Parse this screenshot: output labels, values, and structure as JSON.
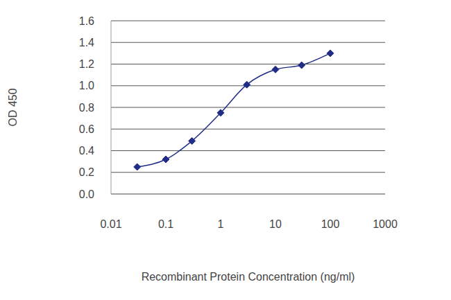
{
  "chart_data": {
    "type": "line",
    "x_label": "Recombinant Protein Concentration (ng/ml)",
    "y_label": "OD 450",
    "x": [
      0.03,
      0.1,
      0.3,
      1,
      3,
      10,
      30,
      100
    ],
    "values": [
      0.25,
      0.32,
      0.49,
      0.75,
      1.01,
      1.15,
      1.19,
      1.3
    ],
    "color": "#1f2d86",
    "marker": "diamond",
    "log": "x",
    "xlim": [
      0.01,
      1000
    ],
    "xticks": [
      0.01,
      0.1,
      1,
      10,
      100,
      1000
    ],
    "ylim": [
      0,
      1.6
    ],
    "yticks": [
      {
        "value": 0,
        "label": "0.0"
      },
      0.2,
      0.4,
      0.6,
      0.8,
      {
        "value": 1,
        "label": "1.0"
      },
      1.2,
      1.4,
      1.6
    ],
    "grid": true
  }
}
